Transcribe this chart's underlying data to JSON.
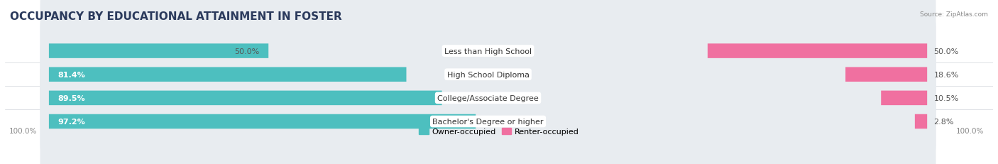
{
  "title": "OCCUPANCY BY EDUCATIONAL ATTAINMENT IN FOSTER",
  "source": "Source: ZipAtlas.com",
  "categories": [
    "Less than High School",
    "High School Diploma",
    "College/Associate Degree",
    "Bachelor's Degree or higher"
  ],
  "owner_pct": [
    50.0,
    81.4,
    89.5,
    97.2
  ],
  "renter_pct": [
    50.0,
    18.6,
    10.5,
    2.8
  ],
  "owner_color": "#4DBFBF",
  "renter_color": "#F070A0",
  "bg_color": "#FFFFFF",
  "bar_bg_color": "#E8ECF0",
  "title_fontsize": 11,
  "label_fontsize": 8,
  "tick_fontsize": 7.5,
  "legend_fontsize": 8,
  "x_axis_label_left": "100.0%",
  "x_axis_label_right": "100.0%",
  "bar_height": 0.62,
  "figsize": [
    14.06,
    2.32
  ],
  "dpi": 100
}
